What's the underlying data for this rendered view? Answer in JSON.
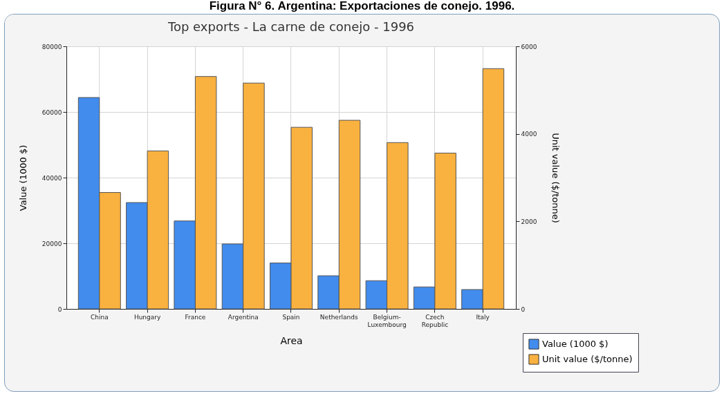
{
  "chart_data": {
    "type": "bar",
    "title": "Top exports - La carne de conejo - 1996",
    "xlabel": "Area",
    "ylabel": "Value (1000 $)",
    "y2label": "Unit value ($/tonne)",
    "annotations": [
      "Figura N° 6. Argentina: Exportaciones de conejo. 1996."
    ],
    "categories": [
      "China",
      "Hungary",
      "France",
      "Argentina",
      "Spain",
      "Netherlands",
      "Belgium-Luxembourg",
      "Czech Republic",
      "Italy"
    ],
    "series": [
      {
        "name": "Value (1000 $)",
        "color": "#418ced",
        "values": [
          64400,
          32400,
          26800,
          19800,
          14000,
          10100,
          8600,
          6700,
          5900
        ]
      },
      {
        "name": "Unit value ($/tonne)",
        "color": "#f9b13f",
        "axis": "y2",
        "values": [
          2660,
          3610,
          5310,
          5160,
          4150,
          4310,
          3800,
          3560,
          5490
        ]
      }
    ],
    "ylim": [
      0,
      80000
    ],
    "yticks": [
      0,
      20000,
      40000,
      60000,
      80000
    ],
    "y2lim": [
      0,
      6000
    ],
    "y2ticks": [
      0,
      2000,
      4000,
      6000
    ],
    "grid": true,
    "legend": "bottom right"
  }
}
